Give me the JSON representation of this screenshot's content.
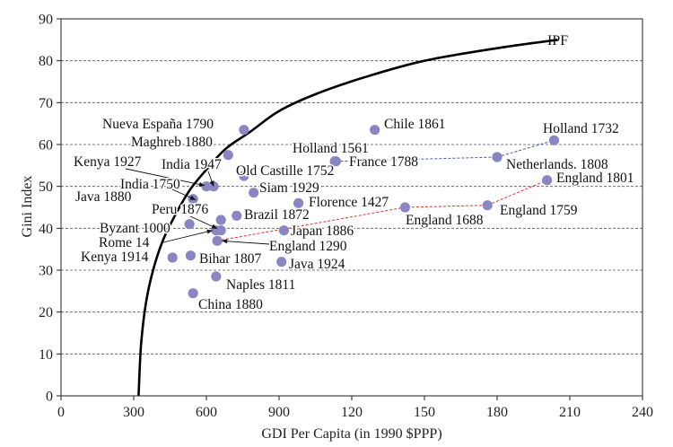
{
  "chart_data": {
    "type": "scatter",
    "xlabel": "GDI Per Capita (in 1990 $PPP)",
    "ylabel": "Gini Index",
    "xlim": [
      0,
      2400
    ],
    "ylim": [
      0,
      90
    ],
    "x_tick_values": [
      0,
      300,
      600,
      900,
      1200,
      1500,
      1800,
      2100,
      2400
    ],
    "x_tick_labels": [
      "0",
      "300",
      "600",
      "900",
      "120",
      "150",
      "180",
      "210",
      "240"
    ],
    "y_ticks": [
      0,
      10,
      20,
      30,
      40,
      50,
      60,
      70,
      80,
      90
    ],
    "grid": "horizontal dashed",
    "marker_color": "#8a86c4",
    "curve_color": "#000000",
    "curve_label": "IPF",
    "curve": {
      "x": [
        320,
        330,
        350,
        380,
        420,
        470,
        530,
        600,
        680,
        780,
        900,
        1050,
        1250,
        1500,
        1800,
        2050
      ],
      "y": [
        0,
        12,
        22,
        30,
        37,
        43,
        49,
        54,
        59,
        63,
        68,
        72,
        76,
        80,
        83,
        85
      ]
    },
    "points": [
      {
        "label": "Nueva España 1790",
        "x": 755,
        "y": 63.5
      },
      {
        "label": "Maghreb 1880",
        "x": 690,
        "y": 57.5
      },
      {
        "label": "Chile 1861",
        "x": 1295,
        "y": 63.5
      },
      {
        "label": "Holland 1732",
        "x": 2035,
        "y": 61
      },
      {
        "label": "Holland 1561",
        "x": 1130,
        "y": 56
      },
      {
        "label": "France 1788",
        "x": 1135,
        "y": 56
      },
      {
        "label": "Netherlands. 1808",
        "x": 1800,
        "y": 57
      },
      {
        "label": "England 1801",
        "x": 2006,
        "y": 51.5
      },
      {
        "label": "Kenya 1927",
        "x": 600,
        "y": 50
      },
      {
        "label": "India 1947",
        "x": 630,
        "y": 50
      },
      {
        "label": "Old Castille 1752",
        "x": 755,
        "y": 52.5
      },
      {
        "label": "Siam 1929",
        "x": 795,
        "y": 48.5
      },
      {
        "label": "India 1750",
        "x": 545,
        "y": 47
      },
      {
        "label": "Java 1880",
        "x": 530,
        "y": 41
      },
      {
        "label": "Florence 1427",
        "x": 980,
        "y": 46
      },
      {
        "label": "England 1688",
        "x": 1420,
        "y": 45
      },
      {
        "label": "England 1759",
        "x": 1760,
        "y": 45.5
      },
      {
        "label": "Peru 1876",
        "x": 660,
        "y": 42
      },
      {
        "label": "Brazil 1872",
        "x": 725,
        "y": 43
      },
      {
        "label": "Byzant 1000",
        "x": 640,
        "y": 39.5
      },
      {
        "label": "Rome 14",
        "x": 660,
        "y": 39.5
      },
      {
        "label": "Japan 1886",
        "x": 920,
        "y": 39.5
      },
      {
        "label": "England 1290",
        "x": 645,
        "y": 37
      },
      {
        "label": "Kenya 1914",
        "x": 460,
        "y": 33
      },
      {
        "label": "Bihar 1807",
        "x": 535,
        "y": 33.5
      },
      {
        "label": "Java 1924",
        "x": 910,
        "y": 32
      },
      {
        "label": "Naples 1811",
        "x": 640,
        "y": 28.5
      },
      {
        "label": "China 1880",
        "x": 545,
        "y": 24.5
      }
    ],
    "dashed_links": [
      {
        "color": "#4f5aa8",
        "points": [
          [
            1135,
            56
          ],
          [
            1800,
            57
          ],
          [
            2035,
            61
          ]
        ]
      },
      {
        "color": "#e0302d",
        "points": [
          [
            645,
            37
          ],
          [
            1420,
            45
          ],
          [
            1760,
            45.5
          ],
          [
            2006,
            51.5
          ]
        ]
      }
    ]
  }
}
